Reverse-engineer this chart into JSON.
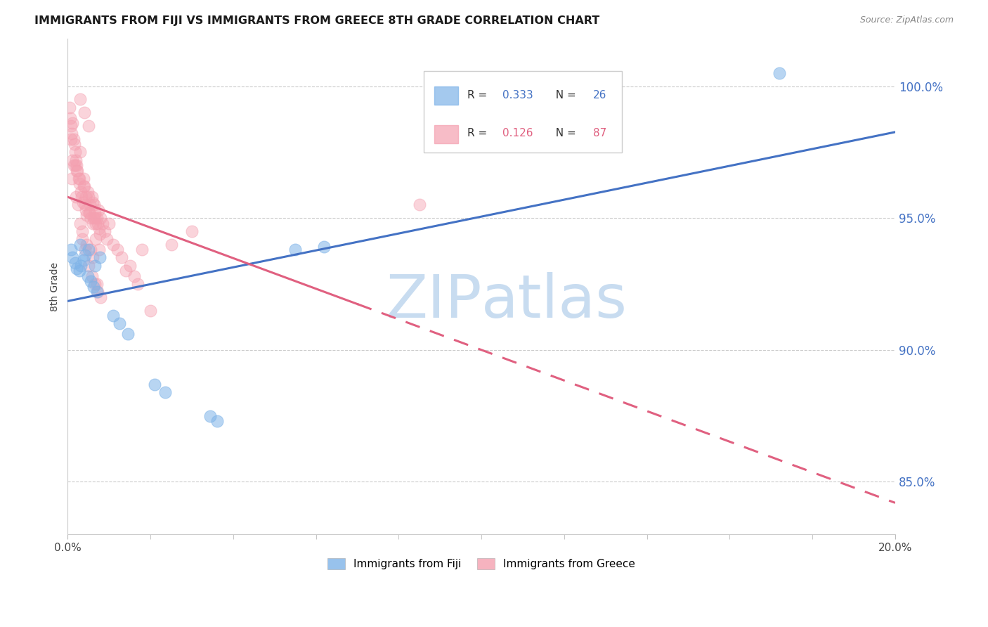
{
  "title": "IMMIGRANTS FROM FIJI VS IMMIGRANTS FROM GREECE 8TH GRADE CORRELATION CHART",
  "source": "Source: ZipAtlas.com",
  "ylabel": "8th Grade",
  "ytick_vals": [
    85.0,
    90.0,
    95.0,
    100.0
  ],
  "ytick_labels": [
    "85.0%",
    "90.0%",
    "95.0%",
    "100.0%"
  ],
  "xlim": [
    0.0,
    20.0
  ],
  "ylim": [
    83.0,
    101.8
  ],
  "fiji_color": "#7EB3E8",
  "greece_color": "#F4A0B0",
  "fiji_R": 0.333,
  "fiji_N": 26,
  "greece_R": 0.126,
  "greece_N": 87,
  "fiji_line_color": "#4472C4",
  "greece_line_color": "#E06080",
  "fiji_scatter_x": [
    0.08,
    0.12,
    0.18,
    0.22,
    0.28,
    0.32,
    0.38,
    0.42,
    0.48,
    0.55,
    0.62,
    0.7,
    0.78,
    0.3,
    0.5,
    0.65,
    1.1,
    1.25,
    1.45,
    2.1,
    2.35,
    3.45,
    3.62,
    5.5,
    17.2,
    6.2
  ],
  "fiji_scatter_y": [
    93.8,
    93.5,
    93.3,
    93.1,
    93.0,
    93.2,
    93.4,
    93.6,
    92.8,
    92.6,
    92.4,
    92.2,
    93.5,
    94.0,
    93.8,
    93.2,
    91.3,
    91.0,
    90.6,
    88.7,
    88.4,
    87.5,
    87.3,
    93.8,
    100.5,
    93.9
  ],
  "greece_scatter_x": [
    0.04,
    0.06,
    0.08,
    0.1,
    0.12,
    0.14,
    0.16,
    0.18,
    0.2,
    0.22,
    0.24,
    0.26,
    0.28,
    0.3,
    0.32,
    0.34,
    0.36,
    0.38,
    0.4,
    0.42,
    0.44,
    0.46,
    0.48,
    0.5,
    0.52,
    0.54,
    0.56,
    0.58,
    0.6,
    0.62,
    0.64,
    0.66,
    0.68,
    0.7,
    0.72,
    0.74,
    0.76,
    0.78,
    0.8,
    0.85,
    0.9,
    0.95,
    1.0,
    1.1,
    1.2,
    1.3,
    1.4,
    1.5,
    1.6,
    1.7,
    0.1,
    0.15,
    0.2,
    0.25,
    0.3,
    0.35,
    0.4,
    0.45,
    0.5,
    0.55,
    0.6,
    0.65,
    0.7,
    0.08,
    0.12,
    0.18,
    0.22,
    0.28,
    0.35,
    0.42,
    0.5,
    0.58,
    0.65,
    0.72,
    0.8,
    2.0,
    2.5,
    3.0,
    8.5,
    1.8,
    0.3,
    0.38,
    0.44,
    0.52,
    0.6,
    0.68,
    0.76
  ],
  "greece_scatter_y": [
    99.2,
    98.8,
    98.5,
    98.2,
    98.6,
    98.0,
    97.8,
    97.5,
    97.2,
    97.0,
    96.8,
    96.5,
    96.3,
    97.5,
    96.0,
    95.8,
    95.6,
    96.5,
    96.2,
    95.5,
    95.3,
    95.1,
    96.0,
    95.8,
    95.2,
    95.5,
    95.0,
    95.8,
    95.6,
    95.0,
    95.5,
    95.2,
    94.8,
    95.0,
    94.8,
    95.3,
    94.6,
    94.4,
    95.0,
    94.8,
    94.5,
    94.2,
    94.8,
    94.0,
    93.8,
    93.5,
    93.0,
    93.2,
    92.8,
    92.5,
    96.5,
    97.0,
    95.8,
    95.5,
    94.8,
    94.5,
    99.0,
    94.0,
    98.5,
    93.8,
    93.5,
    95.0,
    92.5,
    98.0,
    97.2,
    97.0,
    96.8,
    96.5,
    94.2,
    93.8,
    93.2,
    92.8,
    92.5,
    92.2,
    92.0,
    91.5,
    94.0,
    94.5,
    95.5,
    93.8,
    99.5,
    96.2,
    95.8,
    95.2,
    94.8,
    94.2,
    93.8
  ],
  "watermark_zip": "ZIP",
  "watermark_atlas": "atlas",
  "watermark_color_zip": "#C8DCF0",
  "watermark_color_atlas": "#C8DCF0",
  "background_color": "#FFFFFF",
  "grid_color": "#CCCCCC"
}
